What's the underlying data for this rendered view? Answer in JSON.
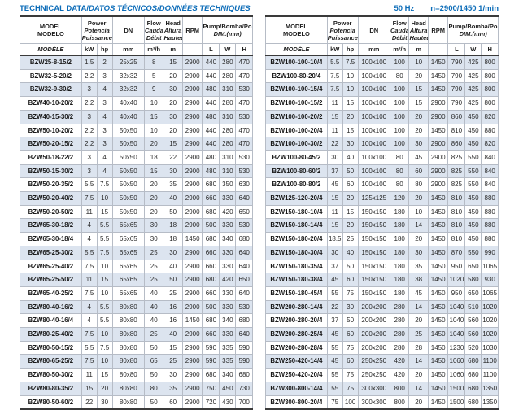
{
  "page": {
    "title_main": "TECHNICAL DATA/",
    "title_italic": "DATOS TÉCNICOS/DONNÉES TECHNIQUES",
    "frequency": "50 Hz",
    "speed": "n=2900/1450 1/min"
  },
  "header": {
    "model_l1": "MODEL",
    "model_l2": "MODELO",
    "model_l3": "MODÈLE",
    "power_l1": "Power",
    "power_l2": "Potencia",
    "power_l3": "Puissance",
    "dn": "DN",
    "flow_l1": "Flow",
    "flow_l2": "Caudal",
    "flow_l3": "Débit",
    "head_l1": "Head",
    "head_l2": "Altura",
    "head_l3": "Hauteur",
    "rpm": "RPM",
    "dim_l1": "Pump/Bomba/Pompe",
    "dim_l2": "DIM.(mm)",
    "unit_kw": "kW",
    "unit_hp": "hp",
    "unit_mm": "mm",
    "unit_flow": "m³/h",
    "unit_m": "m",
    "unit_l": "L",
    "unit_w": "W",
    "unit_h": "H"
  },
  "colors": {
    "accent_blue": "#0c6cb8",
    "row_shade": "#dce4ef"
  },
  "left_table_rows": [
    [
      "BZW25-8-15/2",
      "1.5",
      "2",
      "25x25",
      "8",
      "15",
      "2900",
      "440",
      "280",
      "470"
    ],
    [
      "BZW32-5-20/2",
      "2.2",
      "3",
      "32x32",
      "5",
      "20",
      "2900",
      "440",
      "280",
      "470"
    ],
    [
      "BZW32-9-30/2",
      "3",
      "4",
      "32x32",
      "9",
      "30",
      "2900",
      "480",
      "310",
      "530"
    ],
    [
      "BZW40-10-20/2",
      "2.2",
      "3",
      "40x40",
      "10",
      "20",
      "2900",
      "440",
      "280",
      "470"
    ],
    [
      "BZW40-15-30/2",
      "3",
      "4",
      "40x40",
      "15",
      "30",
      "2900",
      "480",
      "310",
      "530"
    ],
    [
      "BZW50-10-20/2",
      "2.2",
      "3",
      "50x50",
      "10",
      "20",
      "2900",
      "440",
      "280",
      "470"
    ],
    [
      "BZW50-20-15/2",
      "2.2",
      "3",
      "50x50",
      "20",
      "15",
      "2900",
      "440",
      "280",
      "470"
    ],
    [
      "BZW50-18-22/2",
      "3",
      "4",
      "50x50",
      "18",
      "22",
      "2900",
      "480",
      "310",
      "530"
    ],
    [
      "BZW50-15-30/2",
      "3",
      "4",
      "50x50",
      "15",
      "30",
      "2900",
      "480",
      "310",
      "530"
    ],
    [
      "BZW50-20-35/2",
      "5.5",
      "7.5",
      "50x50",
      "20",
      "35",
      "2900",
      "680",
      "350",
      "630"
    ],
    [
      "BZW50-20-40/2",
      "7.5",
      "10",
      "50x50",
      "20",
      "40",
      "2900",
      "660",
      "330",
      "640"
    ],
    [
      "BZW50-20-50/2",
      "11",
      "15",
      "50x50",
      "20",
      "50",
      "2900",
      "680",
      "420",
      "650"
    ],
    [
      "BZW65-30-18/2",
      "4",
      "5.5",
      "65x65",
      "30",
      "18",
      "2900",
      "500",
      "330",
      "530"
    ],
    [
      "BZW65-30-18/4",
      "4",
      "5.5",
      "65x65",
      "30",
      "18",
      "1450",
      "680",
      "340",
      "680"
    ],
    [
      "BZW65-25-30/2",
      "5.5",
      "7.5",
      "65x65",
      "25",
      "30",
      "2900",
      "660",
      "330",
      "640"
    ],
    [
      "BZW65-25-40/2",
      "7.5",
      "10",
      "65x65",
      "25",
      "40",
      "2900",
      "660",
      "330",
      "640"
    ],
    [
      "BZW65-25-50/2",
      "11",
      "15",
      "65x65",
      "25",
      "50",
      "2900",
      "680",
      "420",
      "650"
    ],
    [
      "BZW65-40-25/2",
      "7.5",
      "10",
      "65x65",
      "40",
      "25",
      "2900",
      "660",
      "330",
      "640"
    ],
    [
      "BZW80-40-16/2",
      "4",
      "5.5",
      "80x80",
      "40",
      "16",
      "2900",
      "500",
      "330",
      "530"
    ],
    [
      "BZW80-40-16/4",
      "4",
      "5.5",
      "80x80",
      "40",
      "16",
      "1450",
      "680",
      "340",
      "680"
    ],
    [
      "BZW80-25-40/2",
      "7.5",
      "10",
      "80x80",
      "25",
      "40",
      "2900",
      "660",
      "330",
      "640"
    ],
    [
      "BZW80-50-15/2",
      "5.5",
      "7.5",
      "80x80",
      "50",
      "15",
      "2900",
      "590",
      "335",
      "590"
    ],
    [
      "BZW80-65-25/2",
      "7.5",
      "10",
      "80x80",
      "65",
      "25",
      "2900",
      "590",
      "335",
      "590"
    ],
    [
      "BZW80-50-30/2",
      "11",
      "15",
      "80x80",
      "50",
      "30",
      "2900",
      "680",
      "340",
      "680"
    ],
    [
      "BZW80-80-35/2",
      "15",
      "20",
      "80x80",
      "80",
      "35",
      "2900",
      "750",
      "450",
      "730"
    ],
    [
      "BZW80-50-60/2",
      "22",
      "30",
      "80x80",
      "50",
      "60",
      "2900",
      "720",
      "430",
      "700"
    ]
  ],
  "right_table_rows": [
    [
      "BZW100-100-10/4",
      "5.5",
      "7.5",
      "100x100",
      "100",
      "10",
      "1450",
      "790",
      "425",
      "800"
    ],
    [
      "BZW100-80-20/4",
      "7.5",
      "10",
      "100x100",
      "80",
      "20",
      "1450",
      "790",
      "425",
      "800"
    ],
    [
      "BZW100-100-15/4",
      "7.5",
      "10",
      "100x100",
      "100",
      "15",
      "1450",
      "790",
      "425",
      "800"
    ],
    [
      "BZW100-100-15/2",
      "11",
      "15",
      "100x100",
      "100",
      "15",
      "2900",
      "790",
      "425",
      "800"
    ],
    [
      "BZW100-100-20/2",
      "15",
      "20",
      "100x100",
      "100",
      "20",
      "2900",
      "860",
      "450",
      "820"
    ],
    [
      "BZW100-100-20/4",
      "11",
      "15",
      "100x100",
      "100",
      "20",
      "1450",
      "810",
      "450",
      "880"
    ],
    [
      "BZW100-100-30/2",
      "22",
      "30",
      "100x100",
      "100",
      "30",
      "2900",
      "860",
      "450",
      "820"
    ],
    [
      "BZW100-80-45/2",
      "30",
      "40",
      "100x100",
      "80",
      "45",
      "2900",
      "825",
      "550",
      "840"
    ],
    [
      "BZW100-80-60/2",
      "37",
      "50",
      "100x100",
      "80",
      "60",
      "2900",
      "825",
      "550",
      "840"
    ],
    [
      "BZW100-80-80/2",
      "45",
      "60",
      "100x100",
      "80",
      "80",
      "2900",
      "825",
      "550",
      "840"
    ],
    [
      "BZW125-120-20/4",
      "15",
      "20",
      "125x125",
      "120",
      "20",
      "1450",
      "810",
      "450",
      "880"
    ],
    [
      "BZW150-180-10/4",
      "11",
      "15",
      "150x150",
      "180",
      "10",
      "1450",
      "810",
      "450",
      "880"
    ],
    [
      "BZW150-180-14/4",
      "15",
      "20",
      "150x150",
      "180",
      "14",
      "1450",
      "810",
      "450",
      "880"
    ],
    [
      "BZW150-180-20/4",
      "18.5",
      "25",
      "150x150",
      "180",
      "20",
      "1450",
      "810",
      "450",
      "880"
    ],
    [
      "BZW150-180-30/4",
      "30",
      "40",
      "150x150",
      "180",
      "30",
      "1450",
      "870",
      "550",
      "990"
    ],
    [
      "BZW150-180-35/4",
      "37",
      "50",
      "150x150",
      "180",
      "35",
      "1450",
      "950",
      "650",
      "1065"
    ],
    [
      "BZW150-180-38/4",
      "45",
      "60",
      "150x150",
      "180",
      "38",
      "1450",
      "1020",
      "580",
      "930"
    ],
    [
      "BZW150-180-45/4",
      "55",
      "75",
      "150x150",
      "180",
      "45",
      "1450",
      "950",
      "650",
      "1065"
    ],
    [
      "BZW200-280-14/4",
      "22",
      "30",
      "200x200",
      "280",
      "14",
      "1450",
      "1040",
      "510",
      "1020"
    ],
    [
      "BZW200-280-20/4",
      "37",
      "50",
      "200x200",
      "280",
      "20",
      "1450",
      "1040",
      "560",
      "1020"
    ],
    [
      "BZW200-280-25/4",
      "45",
      "60",
      "200x200",
      "280",
      "25",
      "1450",
      "1040",
      "560",
      "1020"
    ],
    [
      "BZW200-280-28/4",
      "55",
      "75",
      "200x200",
      "280",
      "28",
      "1450",
      "1230",
      "520",
      "1030"
    ],
    [
      "BZW250-420-14/4",
      "45",
      "60",
      "250x250",
      "420",
      "14",
      "1450",
      "1060",
      "680",
      "1100"
    ],
    [
      "BZW250-420-20/4",
      "55",
      "75",
      "250x250",
      "420",
      "20",
      "1450",
      "1060",
      "680",
      "1100"
    ],
    [
      "BZW300-800-14/4",
      "55",
      "75",
      "300x300",
      "800",
      "14",
      "1450",
      "1500",
      "680",
      "1350"
    ],
    [
      "BZW300-800-20/4",
      "75",
      "100",
      "300x300",
      "800",
      "20",
      "1450",
      "1500",
      "680",
      "1350"
    ]
  ]
}
